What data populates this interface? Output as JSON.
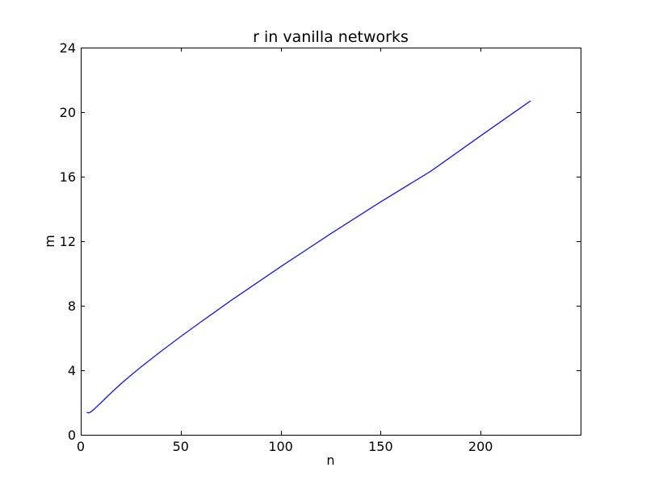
{
  "chart_data": {
    "type": "line",
    "title": "r in vanilla networks",
    "xlabel": "n",
    "ylabel": "m",
    "xlim": [
      0,
      250
    ],
    "ylim": [
      0,
      24
    ],
    "xticks": [
      0,
      50,
      100,
      150,
      200
    ],
    "yticks": [
      0,
      4,
      8,
      12,
      16,
      20,
      24
    ],
    "grid": false,
    "legend": "none",
    "series": [
      {
        "color": "#0000ff",
        "x": [
          3,
          4,
          5,
          7,
          10,
          15,
          20,
          25,
          30,
          40,
          50,
          60,
          75,
          100,
          125,
          150,
          175,
          200,
          225
        ],
        "y": [
          1.4,
          1.35,
          1.42,
          1.62,
          1.98,
          2.58,
          3.15,
          3.68,
          4.19,
          5.16,
          6.09,
          6.99,
          8.31,
          10.42,
          12.46,
          14.44,
          16.33,
          18.53,
          20.7
        ]
      }
    ]
  }
}
